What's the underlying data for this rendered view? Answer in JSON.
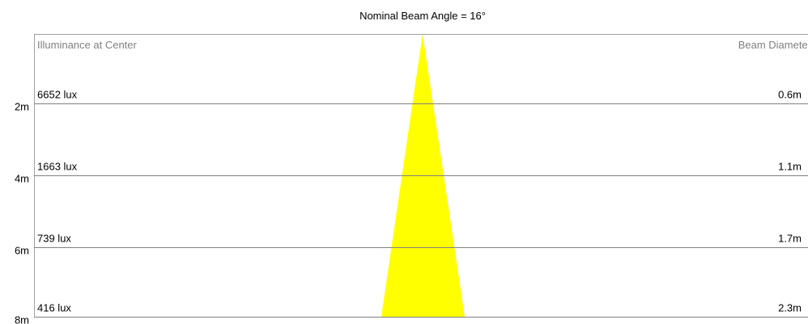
{
  "title": "Nominal Beam Angle = 16°",
  "left_header": "Illuminance at Center",
  "right_header": "Beam Diameter",
  "rows": [
    {
      "distance": "2m",
      "illuminance": "6652 lux",
      "diameter": "0.6m"
    },
    {
      "distance": "4m",
      "illuminance": "1663 lux",
      "diameter": "1.1m"
    },
    {
      "distance": "6m",
      "illuminance": "739 lux",
      "diameter": "1.7m"
    },
    {
      "distance": "8m",
      "illuminance": "416 lux",
      "diameter": "2.3m"
    }
  ]
}
